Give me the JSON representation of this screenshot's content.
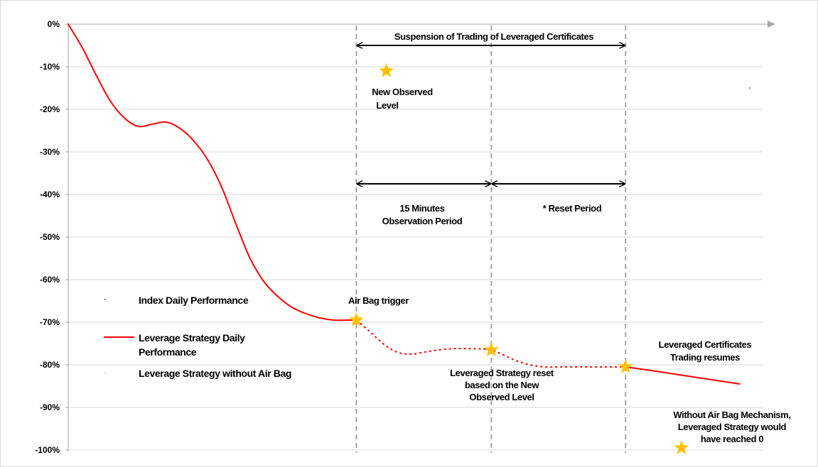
{
  "chart_data": {
    "type": "line",
    "xlim": [
      0,
      100
    ],
    "ylim": [
      -100,
      0
    ],
    "y_ticks": [
      0,
      -10,
      -20,
      -30,
      -40,
      -50,
      -60,
      -70,
      -80,
      -90,
      -100
    ],
    "y_tick_labels": [
      "0%",
      "-10%",
      "-20%",
      "-30%",
      "-40%",
      "-50%",
      "-60%",
      "-70%",
      "-80%",
      "-90%",
      "-100%"
    ],
    "grid": true,
    "legend_position": "left",
    "colors": {
      "series": "#ff0000",
      "star": "#ffc000",
      "dashed_line": "#a6a6a6",
      "grid": "#d9d9d9"
    },
    "series": [
      {
        "name": "Leverage Strategy Daily Performance",
        "style": "solid",
        "x": [
          0,
          2,
          4,
          6,
          8,
          10,
          12,
          14,
          16,
          18,
          20,
          22,
          24,
          26,
          28,
          30,
          32,
          34,
          36,
          38,
          40,
          41.2
        ],
        "y": [
          0,
          -5.5,
          -12,
          -18,
          -22,
          -24,
          -23.5,
          -23,
          -24.5,
          -27.5,
          -32,
          -38.5,
          -47,
          -55,
          -60.5,
          -64,
          -66.5,
          -68,
          -69,
          -69.5,
          -69.5,
          -69.5
        ]
      },
      {
        "name": "Leverage Strategy Daily Performance",
        "style": "dashed",
        "x": [
          41.2,
          43,
          45,
          47,
          49,
          51,
          53,
          55,
          57,
          59,
          60.5,
          62,
          64,
          66,
          68,
          70,
          72,
          74,
          76,
          78,
          79.7
        ],
        "y": [
          -69.5,
          -72,
          -75,
          -77,
          -77.5,
          -77,
          -76.5,
          -76.2,
          -76.2,
          -76.3,
          -76.5,
          -77.5,
          -79,
          -80,
          -80.5,
          -80.5,
          -80.5,
          -80.5,
          -80.5,
          -80.5,
          -80.5
        ]
      },
      {
        "name": "Leverage Strategy Daily Performance",
        "style": "solid",
        "x": [
          79.7,
          84,
          88,
          92,
          96
        ],
        "y": [
          -80.5,
          -81.5,
          -82.5,
          -83.5,
          -84.5
        ]
      },
      {
        "name": "Index Daily Performance",
        "x": [],
        "y": []
      },
      {
        "name": "Leverage Strategy without Air Bag",
        "x": [],
        "y": []
      }
    ],
    "markers": [
      {
        "x": 45.5,
        "y": -11,
        "label": "New Observed Level"
      },
      {
        "x": 41.2,
        "y": -69.5,
        "label": "Air Bag trigger"
      },
      {
        "x": 60.5,
        "y": -76.5,
        "label": "Leveraged Strategy reset based on the New Observed Level"
      },
      {
        "x": 79.7,
        "y": -80.5,
        "label": "Leveraged Certificates Trading resumes"
      },
      {
        "x": 87.7,
        "y": -99.5,
        "label": "Without Air Bag Mechanism, Leveraged Strategy would have reached 0"
      }
    ],
    "vertical_dashed_lines": [
      41.2,
      60.5,
      79.7
    ],
    "periods": [
      {
        "from": 41.2,
        "to": 79.7,
        "y": -5,
        "label": "Suspension of Trading of Leveraged Certificates"
      },
      {
        "from": 41.2,
        "to": 60.5,
        "y": -37.5,
        "label": "15 Minutes Observation Period"
      },
      {
        "from": 60.5,
        "to": 79.7,
        "y": -37.5,
        "label": "* Reset Period"
      }
    ],
    "annotations": {
      "suspension": "Suspension of  Trading of Leveraged Certificates",
      "new_observed": [
        "New Observed",
        "Level"
      ],
      "observation": [
        "15 Minutes",
        "Observation Period"
      ],
      "reset": "* Reset Period",
      "airbag": "Air Bag trigger",
      "reset_strategy": [
        "Leveraged Strategy reset",
        "based on the New",
        "Observed Level"
      ],
      "trading_resumes": [
        "Leveraged Certificates",
        "Trading resumes"
      ],
      "without_airbag": [
        "Without Air Bag Mechanism,",
        "Leveraged Strategy would",
        "have reached 0"
      ]
    },
    "legend": {
      "index": "Index Daily Performance",
      "leverage": [
        "Leverage Strategy Daily",
        "Performance"
      ],
      "without": "Leverage Strategy without Air Bag"
    }
  }
}
